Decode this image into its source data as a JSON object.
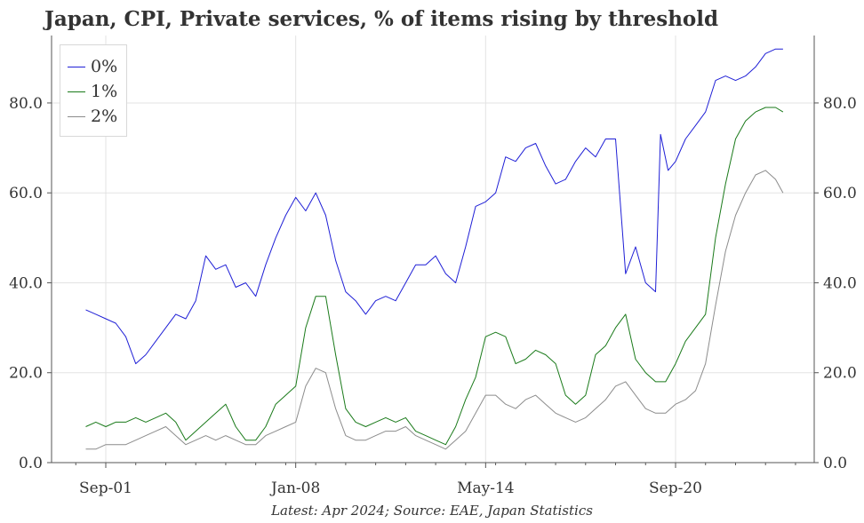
{
  "title": "Japan, CPI, Private services, % of items rising by threshold",
  "footer": "Latest: Apr 2024; Source: EAE, Japan Statistics",
  "chart_data": {
    "type": "line",
    "title": "Japan, CPI, Private services, % of items rising by threshold",
    "xlabel": "",
    "ylabel": "",
    "x_ticks": [
      "Sep-01",
      "Jan-08",
      "May-14",
      "Sep-20"
    ],
    "y_ticks": [
      "0.0",
      "20.0",
      "40.0",
      "60.0",
      "80.0"
    ],
    "ylim": [
      0,
      95
    ],
    "grid": true,
    "legend_position": "top-left",
    "colors": {
      "0%": "#1f1fd6",
      "1%": "#1a7a1a",
      "2%": "#8c8c8c"
    },
    "series": [
      {
        "name": "0%",
        "color": "#1f1fd6",
        "points": [
          [
            "2001-01",
            34
          ],
          [
            "2001-05",
            33
          ],
          [
            "2001-09",
            32
          ],
          [
            "2002-01",
            31
          ],
          [
            "2002-05",
            28
          ],
          [
            "2002-09",
            22
          ],
          [
            "2003-01",
            24
          ],
          [
            "2003-05",
            27
          ],
          [
            "2003-09",
            30
          ],
          [
            "2004-01",
            33
          ],
          [
            "2004-05",
            32
          ],
          [
            "2004-09",
            36
          ],
          [
            "2005-01",
            46
          ],
          [
            "2005-05",
            43
          ],
          [
            "2005-09",
            44
          ],
          [
            "2006-01",
            39
          ],
          [
            "2006-05",
            40
          ],
          [
            "2006-09",
            37
          ],
          [
            "2007-01",
            44
          ],
          [
            "2007-05",
            50
          ],
          [
            "2007-09",
            55
          ],
          [
            "2008-01",
            59
          ],
          [
            "2008-05",
            56
          ],
          [
            "2008-09",
            60
          ],
          [
            "2009-01",
            55
          ],
          [
            "2009-05",
            45
          ],
          [
            "2009-09",
            38
          ],
          [
            "2010-01",
            36
          ],
          [
            "2010-05",
            33
          ],
          [
            "2010-09",
            36
          ],
          [
            "2011-01",
            37
          ],
          [
            "2011-05",
            36
          ],
          [
            "2011-09",
            40
          ],
          [
            "2012-01",
            44
          ],
          [
            "2012-05",
            44
          ],
          [
            "2012-09",
            46
          ],
          [
            "2013-01",
            42
          ],
          [
            "2013-05",
            40
          ],
          [
            "2013-09",
            48
          ],
          [
            "2014-01",
            57
          ],
          [
            "2014-05",
            58
          ],
          [
            "2014-09",
            60
          ],
          [
            "2015-01",
            68
          ],
          [
            "2015-05",
            67
          ],
          [
            "2015-09",
            70
          ],
          [
            "2016-01",
            71
          ],
          [
            "2016-05",
            66
          ],
          [
            "2016-09",
            62
          ],
          [
            "2017-01",
            63
          ],
          [
            "2017-05",
            67
          ],
          [
            "2017-09",
            70
          ],
          [
            "2018-01",
            68
          ],
          [
            "2018-05",
            72
          ],
          [
            "2018-09",
            72
          ],
          [
            "2019-01",
            42
          ],
          [
            "2019-05",
            48
          ],
          [
            "2019-09",
            40
          ],
          [
            "2020-01",
            38
          ],
          [
            "2020-03",
            73
          ],
          [
            "2020-06",
            65
          ],
          [
            "2020-09",
            67
          ],
          [
            "2021-01",
            72
          ],
          [
            "2021-05",
            75
          ],
          [
            "2021-09",
            78
          ],
          [
            "2022-01",
            85
          ],
          [
            "2022-05",
            86
          ],
          [
            "2022-09",
            85
          ],
          [
            "2023-01",
            86
          ],
          [
            "2023-05",
            88
          ],
          [
            "2023-09",
            91
          ],
          [
            "2024-01",
            92
          ],
          [
            "2024-04",
            92
          ]
        ]
      },
      {
        "name": "1%",
        "color": "#1a7a1a",
        "points": [
          [
            "2001-01",
            8
          ],
          [
            "2001-05",
            9
          ],
          [
            "2001-09",
            8
          ],
          [
            "2002-01",
            9
          ],
          [
            "2002-05",
            9
          ],
          [
            "2002-09",
            10
          ],
          [
            "2003-01",
            9
          ],
          [
            "2003-05",
            10
          ],
          [
            "2003-09",
            11
          ],
          [
            "2004-01",
            9
          ],
          [
            "2004-05",
            5
          ],
          [
            "2004-09",
            7
          ],
          [
            "2005-01",
            9
          ],
          [
            "2005-05",
            11
          ],
          [
            "2005-09",
            13
          ],
          [
            "2006-01",
            8
          ],
          [
            "2006-05",
            5
          ],
          [
            "2006-09",
            5
          ],
          [
            "2007-01",
            8
          ],
          [
            "2007-05",
            13
          ],
          [
            "2007-09",
            15
          ],
          [
            "2008-01",
            17
          ],
          [
            "2008-05",
            30
          ],
          [
            "2008-09",
            37
          ],
          [
            "2009-01",
            37
          ],
          [
            "2009-05",
            24
          ],
          [
            "2009-09",
            12
          ],
          [
            "2010-01",
            9
          ],
          [
            "2010-05",
            8
          ],
          [
            "2010-09",
            9
          ],
          [
            "2011-01",
            10
          ],
          [
            "2011-05",
            9
          ],
          [
            "2011-09",
            10
          ],
          [
            "2012-01",
            7
          ],
          [
            "2012-05",
            6
          ],
          [
            "2012-09",
            5
          ],
          [
            "2013-01",
            4
          ],
          [
            "2013-05",
            8
          ],
          [
            "2013-09",
            14
          ],
          [
            "2014-01",
            19
          ],
          [
            "2014-05",
            28
          ],
          [
            "2014-09",
            29
          ],
          [
            "2015-01",
            28
          ],
          [
            "2015-05",
            22
          ],
          [
            "2015-09",
            23
          ],
          [
            "2016-01",
            25
          ],
          [
            "2016-05",
            24
          ],
          [
            "2016-09",
            22
          ],
          [
            "2017-01",
            15
          ],
          [
            "2017-05",
            13
          ],
          [
            "2017-09",
            15
          ],
          [
            "2018-01",
            24
          ],
          [
            "2018-05",
            26
          ],
          [
            "2018-09",
            30
          ],
          [
            "2019-01",
            33
          ],
          [
            "2019-05",
            23
          ],
          [
            "2019-09",
            20
          ],
          [
            "2020-01",
            18
          ],
          [
            "2020-05",
            18
          ],
          [
            "2020-09",
            22
          ],
          [
            "2021-01",
            27
          ],
          [
            "2021-05",
            30
          ],
          [
            "2021-09",
            33
          ],
          [
            "2022-01",
            50
          ],
          [
            "2022-05",
            62
          ],
          [
            "2022-09",
            72
          ],
          [
            "2023-01",
            76
          ],
          [
            "2023-05",
            78
          ],
          [
            "2023-09",
            79
          ],
          [
            "2024-01",
            79
          ],
          [
            "2024-04",
            78
          ]
        ]
      },
      {
        "name": "2%",
        "color": "#8c8c8c",
        "points": [
          [
            "2001-01",
            3
          ],
          [
            "2001-05",
            3
          ],
          [
            "2001-09",
            4
          ],
          [
            "2002-01",
            4
          ],
          [
            "2002-05",
            4
          ],
          [
            "2002-09",
            5
          ],
          [
            "2003-01",
            6
          ],
          [
            "2003-05",
            7
          ],
          [
            "2003-09",
            8
          ],
          [
            "2004-01",
            6
          ],
          [
            "2004-05",
            4
          ],
          [
            "2004-09",
            5
          ],
          [
            "2005-01",
            6
          ],
          [
            "2005-05",
            5
          ],
          [
            "2005-09",
            6
          ],
          [
            "2006-01",
            5
          ],
          [
            "2006-05",
            4
          ],
          [
            "2006-09",
            4
          ],
          [
            "2007-01",
            6
          ],
          [
            "2007-05",
            7
          ],
          [
            "2007-09",
            8
          ],
          [
            "2008-01",
            9
          ],
          [
            "2008-05",
            17
          ],
          [
            "2008-09",
            21
          ],
          [
            "2009-01",
            20
          ],
          [
            "2009-05",
            12
          ],
          [
            "2009-09",
            6
          ],
          [
            "2010-01",
            5
          ],
          [
            "2010-05",
            5
          ],
          [
            "2010-09",
            6
          ],
          [
            "2011-01",
            7
          ],
          [
            "2011-05",
            7
          ],
          [
            "2011-09",
            8
          ],
          [
            "2012-01",
            6
          ],
          [
            "2012-05",
            5
          ],
          [
            "2012-09",
            4
          ],
          [
            "2013-01",
            3
          ],
          [
            "2013-05",
            5
          ],
          [
            "2013-09",
            7
          ],
          [
            "2014-01",
            11
          ],
          [
            "2014-05",
            15
          ],
          [
            "2014-09",
            15
          ],
          [
            "2015-01",
            13
          ],
          [
            "2015-05",
            12
          ],
          [
            "2015-09",
            14
          ],
          [
            "2016-01",
            15
          ],
          [
            "2016-05",
            13
          ],
          [
            "2016-09",
            11
          ],
          [
            "2017-01",
            10
          ],
          [
            "2017-05",
            9
          ],
          [
            "2017-09",
            10
          ],
          [
            "2018-01",
            12
          ],
          [
            "2018-05",
            14
          ],
          [
            "2018-09",
            17
          ],
          [
            "2019-01",
            18
          ],
          [
            "2019-05",
            15
          ],
          [
            "2019-09",
            12
          ],
          [
            "2020-01",
            11
          ],
          [
            "2020-05",
            11
          ],
          [
            "2020-09",
            13
          ],
          [
            "2021-01",
            14
          ],
          [
            "2021-05",
            16
          ],
          [
            "2021-09",
            22
          ],
          [
            "2022-01",
            35
          ],
          [
            "2022-05",
            47
          ],
          [
            "2022-09",
            55
          ],
          [
            "2023-01",
            60
          ],
          [
            "2023-05",
            64
          ],
          [
            "2023-09",
            65
          ],
          [
            "2024-01",
            63
          ],
          [
            "2024-04",
            60
          ]
        ]
      }
    ]
  }
}
